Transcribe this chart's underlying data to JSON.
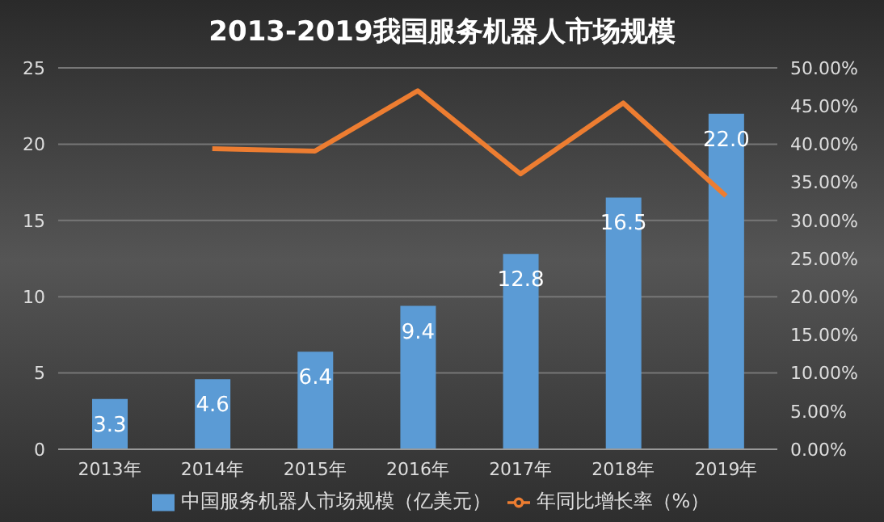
{
  "chart_data": {
    "type": "bar",
    "title": "2013-2019我国服务机器人市场规模",
    "categories": [
      "2013年",
      "2014年",
      "2015年",
      "2016年",
      "2017年",
      "2018年",
      "2019年"
    ],
    "series": [
      {
        "name": "中国服务机器人市场规模（亿美元）",
        "color": "#5b9bd5",
        "values": [
          3.3,
          4.6,
          6.4,
          9.4,
          12.8,
          16.5,
          22.0
        ],
        "value_labels": [
          "3.3",
          "4.6",
          "6.4",
          "9.4",
          "12.8",
          "16.5",
          "22.0"
        ]
      },
      {
        "name": "年同比增长率（%）",
        "type": "line",
        "axis": "y2",
        "color": "#ed7d31",
        "values": [
          null,
          39.4,
          39.1,
          47.0,
          36.1,
          45.4,
          33.2
        ]
      }
    ],
    "ylim": [
      0,
      25
    ],
    "yticks": [
      0,
      5,
      10,
      15,
      20,
      25
    ],
    "y2lim": [
      0,
      50
    ],
    "y2ticks": [
      {
        "value": 0,
        "label": "0.00%"
      },
      {
        "value": 5,
        "label": "5.00%"
      },
      {
        "value": 10,
        "label": "10.00%"
      },
      {
        "value": 15,
        "label": "15.00%"
      },
      {
        "value": 20,
        "label": "20.00%"
      },
      {
        "value": 25,
        "label": "25.00%"
      },
      {
        "value": 30,
        "label": "30.00%"
      },
      {
        "value": 35,
        "label": "35.00%"
      },
      {
        "value": 40,
        "label": "40.00%"
      },
      {
        "value": 45,
        "label": "45.00%"
      },
      {
        "value": 50,
        "label": "50.00%"
      }
    ],
    "grid": "y",
    "legend": "bottom",
    "marker": "none"
  }
}
